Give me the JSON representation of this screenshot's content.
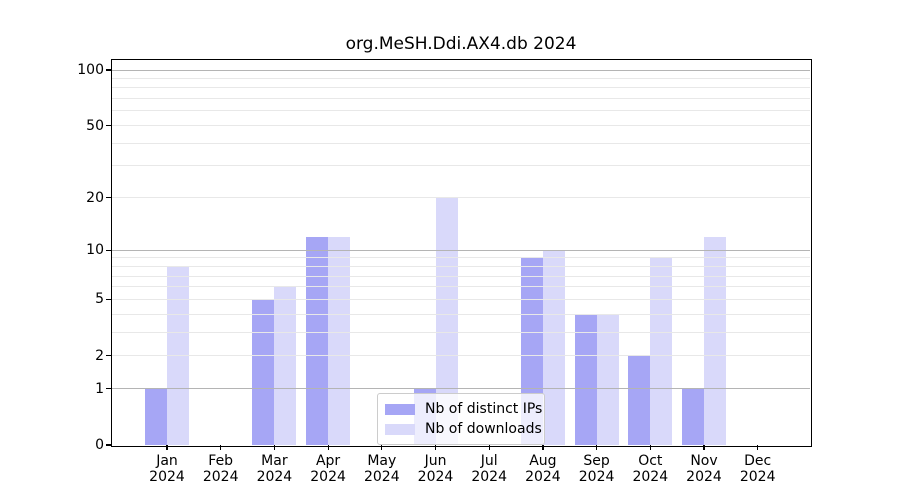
{
  "chart_data": {
    "type": "bar",
    "title": "org.MeSH.Ddi.AX4.db 2024",
    "categories": [
      {
        "month": "Jan",
        "year": "2024"
      },
      {
        "month": "Feb",
        "year": "2024"
      },
      {
        "month": "Mar",
        "year": "2024"
      },
      {
        "month": "Apr",
        "year": "2024"
      },
      {
        "month": "May",
        "year": "2024"
      },
      {
        "month": "Jun",
        "year": "2024"
      },
      {
        "month": "Jul",
        "year": "2024"
      },
      {
        "month": "Aug",
        "year": "2024"
      },
      {
        "month": "Sep",
        "year": "2024"
      },
      {
        "month": "Oct",
        "year": "2024"
      },
      {
        "month": "Nov",
        "year": "2024"
      },
      {
        "month": "Dec",
        "year": "2024"
      }
    ],
    "series": [
      {
        "name": "Nb of distinct IPs",
        "color": "#a6a6f5",
        "values": [
          1,
          0,
          5,
          12,
          0,
          1,
          0,
          9,
          4,
          2,
          1,
          0
        ]
      },
      {
        "name": "Nb of downloads",
        "color": "#d9d9fa",
        "values": [
          8,
          0,
          6,
          12,
          0,
          20,
          0,
          10,
          4,
          9,
          12,
          0
        ]
      }
    ],
    "yscale": "log1p",
    "ylim": [
      0,
      113
    ],
    "y_ticks": [
      0,
      1,
      2,
      5,
      10,
      20,
      50,
      100
    ],
    "y_major_gridlines": [
      1,
      10,
      100
    ],
    "y_minor_gridlines": [
      2,
      3,
      4,
      5,
      6,
      7,
      8,
      9,
      20,
      30,
      40,
      50,
      60,
      70,
      80,
      90
    ],
    "grid": "horizontal",
    "legend_position": "bottom-center"
  },
  "colors": {
    "major_grid": "#b4b4b4",
    "minor_grid": "#e8e8e8",
    "spine": "#000000",
    "legend_border": "#cccccc",
    "background": "#ffffff"
  }
}
